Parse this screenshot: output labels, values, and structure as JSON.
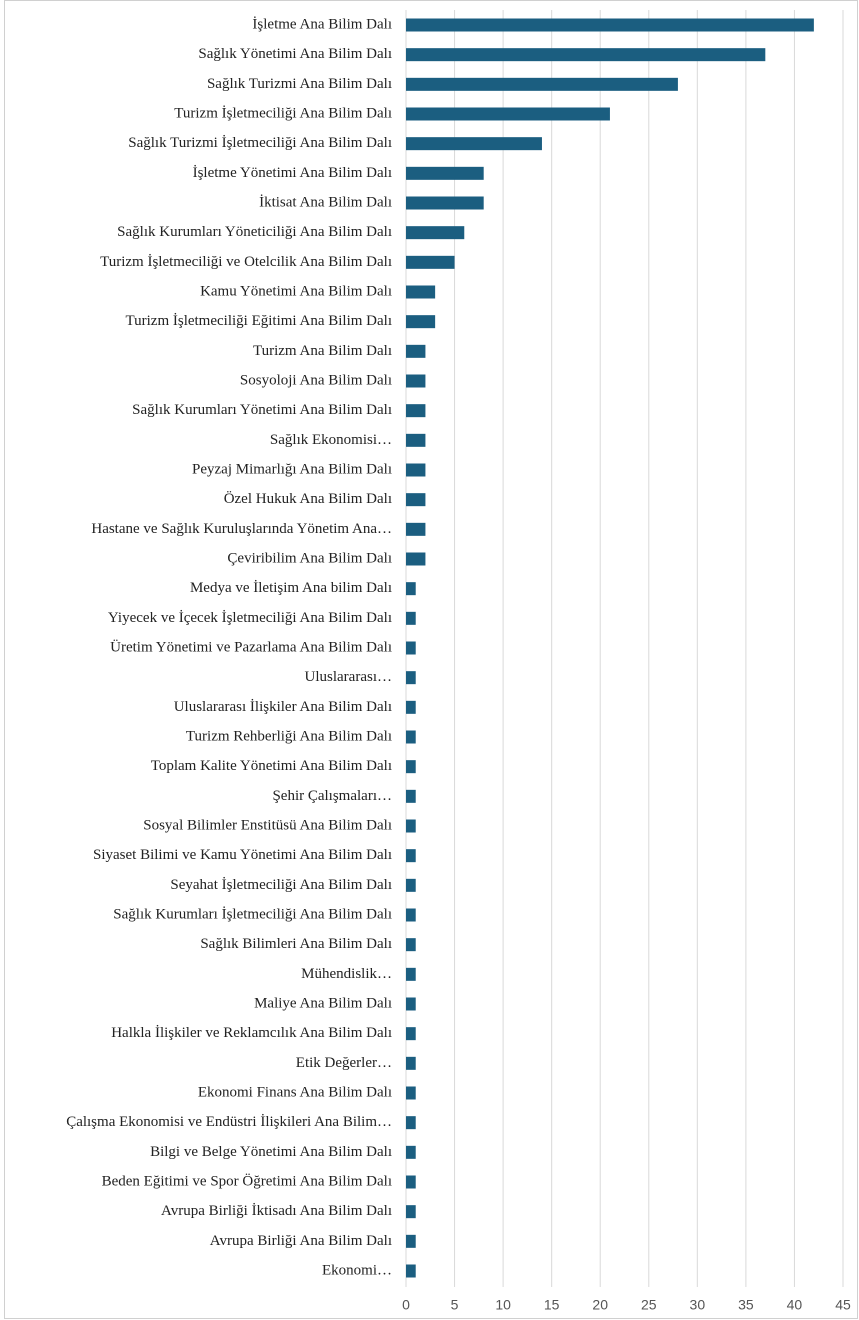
{
  "chart_data": {
    "type": "hbar",
    "color": "#1b5e80",
    "grid": true,
    "xlim": [
      0,
      45
    ],
    "xticks": [
      0,
      5,
      10,
      15,
      20,
      25,
      30,
      35,
      40,
      45
    ],
    "categories": [
      "İşletme Ana Bilim Dalı",
      "Sağlık Yönetimi Ana Bilim Dalı",
      "Sağlık Turizmi Ana Bilim Dalı",
      "Turizm İşletmeciliği Ana Bilim Dalı",
      "Sağlık Turizmi İşletmeciliği Ana Bilim Dalı",
      "İşletme Yönetimi Ana Bilim Dalı",
      "İktisat Ana Bilim Dalı",
      "Sağlık Kurumları Yöneticiliği Ana Bilim Dalı",
      "Turizm İşletmeciliği ve Otelcilik Ana Bilim Dalı",
      "Kamu Yönetimi Ana Bilim Dalı",
      "Turizm İşletmeciliği Eğitimi Ana Bilim Dalı",
      "Turizm Ana Bilim Dalı",
      "Sosyoloji Ana Bilim Dalı",
      "Sağlık Kurumları Yönetimi Ana Bilim Dalı",
      "Sağlık Ekonomisi…",
      "Peyzaj Mimarlığı Ana Bilim Dalı",
      "Özel Hukuk Ana Bilim Dalı",
      "Hastane ve Sağlık Kuruluşlarında Yönetim Ana…",
      "Çeviribilim Ana Bilim Dalı",
      "Medya ve İletişim Ana bilim Dalı",
      "Yiyecek ve İçecek İşletmeciliği Ana Bilim Dalı",
      "Üretim Yönetimi ve Pazarlama Ana Bilim Dalı",
      "Uluslararası…",
      "Uluslararası İlişkiler Ana Bilim Dalı",
      "Turizm Rehberliği Ana Bilim Dalı",
      "Toplam Kalite Yönetimi Ana Bilim Dalı",
      "Şehir Çalışmaları…",
      "Sosyal Bilimler Enstitüsü Ana Bilim Dalı",
      "Siyaset Bilimi ve Kamu Yönetimi Ana Bilim Dalı",
      "Seyahat İşletmeciliği Ana Bilim Dalı",
      "Sağlık Kurumları İşletmeciliği Ana Bilim Dalı",
      "Sağlık Bilimleri Ana Bilim Dalı",
      "Mühendislik…",
      "Maliye Ana Bilim Dalı",
      "Halkla İlişkiler ve Reklamcılık Ana Bilim Dalı",
      "Etik Değerler…",
      "Ekonomi Finans Ana Bilim Dalı",
      "Çalışma Ekonomisi ve Endüstri İlişkileri Ana Bilim…",
      "Bilgi ve Belge Yönetimi Ana Bilim Dalı",
      "Beden Eğitimi ve Spor Öğretimi Ana Bilim Dalı",
      "Avrupa Birliği İktisadı Ana Bilim Dalı",
      "Avrupa Birliği Ana Bilim Dalı",
      "Ekonomi…"
    ],
    "values": [
      42,
      37,
      28,
      21,
      14,
      8,
      8,
      6,
      5,
      3,
      3,
      2,
      2,
      2,
      2,
      2,
      2,
      2,
      2,
      1,
      1,
      1,
      1,
      1,
      1,
      1,
      1,
      1,
      1,
      1,
      1,
      1,
      1,
      1,
      1,
      1,
      1,
      1,
      1,
      1,
      1,
      1,
      1
    ]
  }
}
